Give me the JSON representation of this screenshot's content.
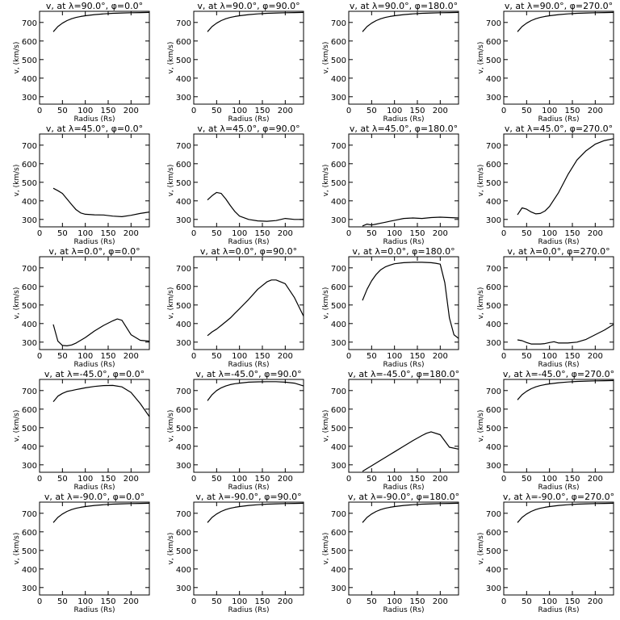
{
  "chart_data": [
    {
      "type": "line",
      "title": "v, at λ=90.0°, φ=0.0°",
      "xlabel": "Radius (Rs)",
      "ylabel": "v, (km/s)",
      "xlim": [
        0,
        240
      ],
      "ylim": [
        260,
        760
      ],
      "xticks": [
        0,
        50,
        100,
        150,
        200
      ],
      "yticks": [
        300,
        400,
        500,
        600,
        700
      ],
      "x": [
        30,
        40,
        50,
        60,
        70,
        80,
        90,
        100,
        120,
        140,
        160,
        180,
        200,
        220,
        240
      ],
      "series": [
        {
          "values": [
            650,
            678,
            696,
            710,
            720,
            727,
            732,
            736,
            742,
            746,
            749,
            751,
            752,
            753,
            754
          ]
        }
      ]
    },
    {
      "type": "line",
      "title": "v, at λ=90.0°, φ=90.0°",
      "xlabel": "Radius (Rs)",
      "ylabel": "v, (km/s)",
      "xlim": [
        0,
        240
      ],
      "ylim": [
        260,
        760
      ],
      "xticks": [
        0,
        50,
        100,
        150,
        200
      ],
      "yticks": [
        300,
        400,
        500,
        600,
        700
      ],
      "x": [
        30,
        40,
        50,
        60,
        70,
        80,
        90,
        100,
        120,
        140,
        160,
        180,
        200,
        220,
        240
      ],
      "series": [
        {
          "values": [
            650,
            678,
            696,
            710,
            720,
            727,
            732,
            736,
            742,
            746,
            749,
            751,
            752,
            753,
            754
          ]
        }
      ]
    },
    {
      "type": "line",
      "title": "v, at λ=90.0°, φ=180.0°",
      "xlabel": "Radius (Rs)",
      "ylabel": "v, (km/s)",
      "xlim": [
        0,
        240
      ],
      "ylim": [
        260,
        760
      ],
      "xticks": [
        0,
        50,
        100,
        150,
        200
      ],
      "yticks": [
        300,
        400,
        500,
        600,
        700
      ],
      "x": [
        30,
        40,
        50,
        60,
        70,
        80,
        90,
        100,
        120,
        140,
        160,
        180,
        200,
        220,
        240
      ],
      "series": [
        {
          "values": [
            650,
            678,
            696,
            710,
            720,
            727,
            732,
            736,
            742,
            746,
            749,
            751,
            752,
            753,
            754
          ]
        }
      ]
    },
    {
      "type": "line",
      "title": "v, at λ=90.0°, φ=270.0°",
      "xlabel": "Radius (Rs)",
      "ylabel": "v, (km/s)",
      "xlim": [
        0,
        240
      ],
      "ylim": [
        260,
        760
      ],
      "xticks": [
        0,
        50,
        100,
        150,
        200
      ],
      "yticks": [
        300,
        400,
        500,
        600,
        700
      ],
      "x": [
        30,
        40,
        50,
        60,
        70,
        80,
        90,
        100,
        120,
        140,
        160,
        180,
        200,
        220,
        240
      ],
      "series": [
        {
          "values": [
            650,
            678,
            696,
            710,
            720,
            727,
            732,
            736,
            742,
            746,
            749,
            751,
            752,
            753,
            754
          ]
        }
      ]
    },
    {
      "type": "line",
      "title": "v, at λ=45.0°, φ=0.0°",
      "xlabel": "Radius (Rs)",
      "ylabel": "v, (km/s)",
      "xlim": [
        0,
        240
      ],
      "ylim": [
        260,
        760
      ],
      "xticks": [
        0,
        50,
        100,
        150,
        200
      ],
      "yticks": [
        300,
        400,
        500,
        600,
        700
      ],
      "x": [
        30,
        40,
        50,
        60,
        70,
        80,
        90,
        100,
        120,
        140,
        160,
        180,
        200,
        220,
        240
      ],
      "series": [
        {
          "values": [
            468,
            455,
            440,
            410,
            380,
            352,
            335,
            328,
            325,
            324,
            318,
            315,
            322,
            332,
            340
          ]
        }
      ]
    },
    {
      "type": "line",
      "title": "v, at λ=45.0°, φ=90.0°",
      "xlabel": "Radius (Rs)",
      "ylabel": "v, (km/s)",
      "xlim": [
        0,
        240
      ],
      "ylim": [
        260,
        760
      ],
      "xticks": [
        0,
        50,
        100,
        150,
        200
      ],
      "yticks": [
        300,
        400,
        500,
        600,
        700
      ],
      "x": [
        30,
        40,
        50,
        60,
        70,
        80,
        90,
        100,
        120,
        140,
        160,
        180,
        200,
        220,
        240
      ],
      "series": [
        {
          "values": [
            405,
            428,
            445,
            440,
            410,
            375,
            342,
            318,
            300,
            292,
            290,
            294,
            305,
            300,
            300
          ]
        }
      ]
    },
    {
      "type": "line",
      "title": "v, at λ=45.0°, φ=180.0°",
      "xlabel": "Radius (Rs)",
      "ylabel": "v, (km/s)",
      "xlim": [
        0,
        240
      ],
      "ylim": [
        260,
        760
      ],
      "xticks": [
        0,
        50,
        100,
        150,
        200
      ],
      "yticks": [
        300,
        400,
        500,
        600,
        700
      ],
      "x": [
        30,
        40,
        50,
        60,
        70,
        80,
        90,
        100,
        120,
        140,
        160,
        180,
        200,
        220,
        240
      ],
      "series": [
        {
          "values": [
            265,
            275,
            270,
            275,
            280,
            285,
            290,
            295,
            305,
            308,
            305,
            310,
            312,
            310,
            308
          ]
        }
      ]
    },
    {
      "type": "line",
      "title": "v, at λ=45.0°, φ=270.0°",
      "xlabel": "Radius (Rs)",
      "ylabel": "v, (km/s)",
      "xlim": [
        0,
        240
      ],
      "ylim": [
        260,
        760
      ],
      "xticks": [
        0,
        50,
        100,
        150,
        200
      ],
      "yticks": [
        300,
        400,
        500,
        600,
        700
      ],
      "x": [
        30,
        40,
        50,
        60,
        70,
        80,
        90,
        100,
        120,
        140,
        160,
        180,
        200,
        220,
        240
      ],
      "series": [
        {
          "values": [
            325,
            362,
            355,
            340,
            330,
            332,
            345,
            370,
            445,
            540,
            620,
            670,
            705,
            725,
            735
          ]
        }
      ]
    },
    {
      "type": "line",
      "title": "v, at λ=0.0°, φ=0.0°",
      "xlabel": "Radius (Rs)",
      "ylabel": "v, (km/s)",
      "xlim": [
        0,
        240
      ],
      "ylim": [
        260,
        760
      ],
      "xticks": [
        0,
        50,
        100,
        150,
        200
      ],
      "yticks": [
        300,
        400,
        500,
        600,
        700
      ],
      "x": [
        30,
        40,
        50,
        60,
        70,
        80,
        90,
        100,
        120,
        140,
        160,
        170,
        180,
        200,
        220,
        240
      ],
      "series": [
        {
          "values": [
            395,
            305,
            282,
            280,
            285,
            295,
            310,
            325,
            360,
            390,
            415,
            425,
            418,
            340,
            310,
            305
          ]
        }
      ]
    },
    {
      "type": "line",
      "title": "v, at λ=0.0°, φ=90.0°",
      "xlabel": "Radius (Rs)",
      "ylabel": "v, (km/s)",
      "xlim": [
        0,
        240
      ],
      "ylim": [
        260,
        760
      ],
      "xticks": [
        0,
        50,
        100,
        150,
        200
      ],
      "yticks": [
        300,
        400,
        500,
        600,
        700
      ],
      "x": [
        30,
        40,
        50,
        60,
        70,
        80,
        90,
        100,
        120,
        140,
        160,
        170,
        180,
        200,
        220,
        240
      ],
      "series": [
        {
          "values": [
            335,
            355,
            370,
            390,
            410,
            430,
            455,
            480,
            530,
            585,
            625,
            635,
            635,
            615,
            540,
            440
          ]
        }
      ]
    },
    {
      "type": "line",
      "title": "v, at λ=0.0°, φ=180.0°",
      "xlabel": "Radius (Rs)",
      "ylabel": "v, (km/s)",
      "xlim": [
        0,
        240
      ],
      "ylim": [
        260,
        760
      ],
      "xticks": [
        0,
        50,
        100,
        150,
        200
      ],
      "yticks": [
        300,
        400,
        500,
        600,
        700
      ],
      "x": [
        30,
        40,
        50,
        60,
        70,
        80,
        90,
        100,
        120,
        140,
        160,
        180,
        190,
        200,
        210,
        220,
        230,
        240
      ],
      "series": [
        {
          "values": [
            525,
            585,
            630,
            665,
            690,
            705,
            715,
            722,
            728,
            730,
            730,
            728,
            725,
            720,
            620,
            430,
            340,
            320
          ]
        }
      ]
    },
    {
      "type": "line",
      "title": "v, at λ=0.0°, φ=270.0°",
      "xlabel": "Radius (Rs)",
      "ylabel": "v, (km/s)",
      "xlim": [
        0,
        240
      ],
      "ylim": [
        260,
        760
      ],
      "xticks": [
        0,
        50,
        100,
        150,
        200
      ],
      "yticks": [
        300,
        400,
        500,
        600,
        700
      ],
      "x": [
        30,
        40,
        50,
        60,
        70,
        80,
        90,
        100,
        110,
        120,
        140,
        160,
        180,
        200,
        220,
        240
      ],
      "series": [
        {
          "values": [
            312,
            308,
            298,
            290,
            290,
            290,
            292,
            298,
            302,
            295,
            295,
            300,
            315,
            340,
            365,
            395
          ]
        }
      ]
    },
    {
      "type": "line",
      "title": "v, at λ=-45.0°, φ=0.0°",
      "xlabel": "Radius (Rs)",
      "ylabel": "v, (km/s)",
      "xlim": [
        0,
        240
      ],
      "ylim": [
        260,
        760
      ],
      "xticks": [
        0,
        50,
        100,
        150,
        200
      ],
      "yticks": [
        300,
        400,
        500,
        600,
        700
      ],
      "x": [
        30,
        40,
        50,
        60,
        70,
        80,
        90,
        100,
        120,
        140,
        160,
        180,
        200,
        220,
        240
      ],
      "series": [
        {
          "values": [
            640,
            670,
            685,
            695,
            700,
            705,
            710,
            715,
            722,
            727,
            728,
            720,
            690,
            630,
            560
          ]
        }
      ]
    },
    {
      "type": "line",
      "title": "v, at λ=-45.0°, φ=90.0°",
      "xlabel": "Radius (Rs)",
      "ylabel": "v, (km/s)",
      "xlim": [
        0,
        240
      ],
      "ylim": [
        260,
        760
      ],
      "xticks": [
        0,
        50,
        100,
        150,
        200
      ],
      "yticks": [
        300,
        400,
        500,
        600,
        700
      ],
      "x": [
        30,
        40,
        50,
        60,
        70,
        80,
        90,
        100,
        120,
        140,
        160,
        180,
        200,
        220,
        240
      ],
      "series": [
        {
          "values": [
            645,
            678,
            700,
            715,
            725,
            732,
            737,
            740,
            745,
            747,
            748,
            748,
            745,
            740,
            725
          ]
        }
      ]
    },
    {
      "type": "line",
      "title": "v, at λ=-45.0°, φ=180.0°",
      "xlabel": "Radius (Rs)",
      "ylabel": "v, (km/s)",
      "xlim": [
        0,
        240
      ],
      "ylim": [
        260,
        760
      ],
      "xticks": [
        0,
        50,
        100,
        150,
        200
      ],
      "yticks": [
        300,
        400,
        500,
        600,
        700
      ],
      "x": [
        30,
        40,
        50,
        60,
        70,
        80,
        90,
        100,
        120,
        140,
        160,
        170,
        180,
        200,
        220,
        240
      ],
      "series": [
        {
          "values": [
            265,
            280,
            295,
            310,
            325,
            340,
            355,
            370,
            400,
            430,
            458,
            470,
            478,
            462,
            395,
            385
          ]
        }
      ]
    },
    {
      "type": "line",
      "title": "v, at λ=-45.0°, φ=270.0°",
      "xlabel": "Radius (Rs)",
      "ylabel": "v, (km/s)",
      "xlim": [
        0,
        240
      ],
      "ylim": [
        260,
        760
      ],
      "xticks": [
        0,
        50,
        100,
        150,
        200
      ],
      "yticks": [
        300,
        400,
        500,
        600,
        700
      ],
      "x": [
        30,
        40,
        50,
        60,
        70,
        80,
        90,
        100,
        120,
        140,
        160,
        180,
        200,
        220,
        240
      ],
      "series": [
        {
          "values": [
            650,
            678,
            696,
            710,
            720,
            727,
            732,
            736,
            742,
            746,
            749,
            751,
            752,
            753,
            754
          ]
        }
      ]
    },
    {
      "type": "line",
      "title": "v, at λ=-90.0°, φ=0.0°",
      "xlabel": "Radius (Rs)",
      "ylabel": "v, (km/s)",
      "xlim": [
        0,
        240
      ],
      "ylim": [
        260,
        760
      ],
      "xticks": [
        0,
        50,
        100,
        150,
        200
      ],
      "yticks": [
        300,
        400,
        500,
        600,
        700
      ],
      "x": [
        30,
        40,
        50,
        60,
        70,
        80,
        90,
        100,
        120,
        140,
        160,
        180,
        200,
        220,
        240
      ],
      "series": [
        {
          "values": [
            650,
            678,
            696,
            710,
            720,
            727,
            732,
            736,
            742,
            746,
            749,
            751,
            752,
            753,
            754
          ]
        }
      ]
    },
    {
      "type": "line",
      "title": "v, at λ=-90.0°, φ=90.0°",
      "xlabel": "Radius (Rs)",
      "ylabel": "v, (km/s)",
      "xlim": [
        0,
        240
      ],
      "ylim": [
        260,
        760
      ],
      "xticks": [
        0,
        50,
        100,
        150,
        200
      ],
      "yticks": [
        300,
        400,
        500,
        600,
        700
      ],
      "x": [
        30,
        40,
        50,
        60,
        70,
        80,
        90,
        100,
        120,
        140,
        160,
        180,
        200,
        220,
        240
      ],
      "series": [
        {
          "values": [
            650,
            678,
            696,
            710,
            720,
            727,
            732,
            736,
            742,
            746,
            749,
            751,
            752,
            753,
            754
          ]
        }
      ]
    },
    {
      "type": "line",
      "title": "v, at λ=-90.0°, φ=180.0°",
      "xlabel": "Radius (Rs)",
      "ylabel": "v, (km/s)",
      "xlim": [
        0,
        240
      ],
      "ylim": [
        260,
        760
      ],
      "xticks": [
        0,
        50,
        100,
        150,
        200
      ],
      "yticks": [
        300,
        400,
        500,
        600,
        700
      ],
      "x": [
        30,
        40,
        50,
        60,
        70,
        80,
        90,
        100,
        120,
        140,
        160,
        180,
        200,
        220,
        240
      ],
      "series": [
        {
          "values": [
            650,
            678,
            696,
            710,
            720,
            727,
            732,
            736,
            742,
            746,
            749,
            751,
            752,
            753,
            754
          ]
        }
      ]
    },
    {
      "type": "line",
      "title": "v, at λ=-90.0°, φ=270.0°",
      "xlabel": "Radius (Rs)",
      "ylabel": "v, (km/s)",
      "xlim": [
        0,
        240
      ],
      "ylim": [
        260,
        760
      ],
      "xticks": [
        0,
        50,
        100,
        150,
        200
      ],
      "yticks": [
        300,
        400,
        500,
        600,
        700
      ],
      "x": [
        30,
        40,
        50,
        60,
        70,
        80,
        90,
        100,
        120,
        140,
        160,
        180,
        200,
        220,
        240
      ],
      "series": [
        {
          "values": [
            650,
            678,
            696,
            710,
            720,
            727,
            732,
            736,
            742,
            746,
            749,
            751,
            752,
            753,
            754
          ]
        }
      ]
    }
  ]
}
